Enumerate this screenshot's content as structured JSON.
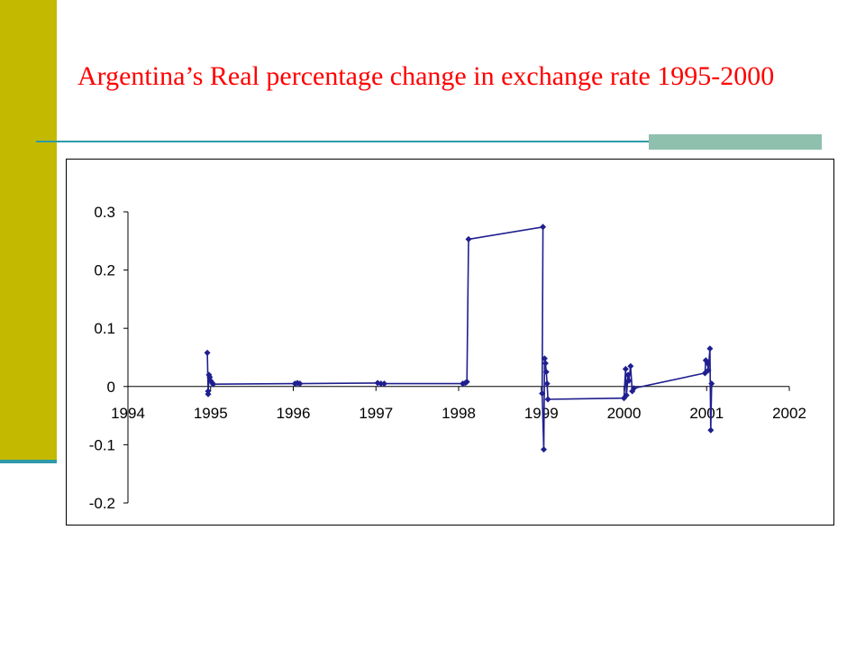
{
  "slide": {
    "title": "Argentina’s Real percentage change in exchange rate 1995-2000"
  },
  "colors": {
    "accent_bar": "#c3b900",
    "rule": "#2e9aa8",
    "rule_block": "#8fbfad",
    "title": "#ff0000",
    "series": "#1f1f8f"
  },
  "chart_data": {
    "type": "scatter",
    "title": "",
    "xlabel": "",
    "ylabel": "",
    "xlim": [
      1994,
      2002
    ],
    "ylim": [
      -0.2,
      0.3
    ],
    "x_ticks": [
      "1994",
      "1995",
      "1996",
      "1997",
      "1998",
      "1999",
      "2000",
      "2001",
      "2002"
    ],
    "y_ticks": [
      "0.3",
      "0.2",
      "0.1",
      "0",
      "-0.1",
      "-0.2"
    ],
    "grid": false,
    "legend": "none",
    "series": [
      {
        "points": [
          [
            1994.96,
            0.058
          ],
          [
            1994.97,
            -0.008
          ],
          [
            1994.97,
            -0.013
          ],
          [
            1994.98,
            0.02
          ],
          [
            1994.99,
            0.016
          ],
          [
            1995.0,
            0.01
          ],
          [
            1995.02,
            0.006
          ],
          [
            1995.03,
            0.004
          ],
          [
            1996.02,
            0.005
          ],
          [
            1996.05,
            0.006
          ],
          [
            1996.08,
            0.005
          ],
          [
            1997.02,
            0.006
          ],
          [
            1997.06,
            0.005
          ],
          [
            1997.1,
            0.005
          ],
          [
            1998.05,
            0.005
          ],
          [
            1998.08,
            0.006
          ],
          [
            1998.1,
            0.008
          ],
          [
            1998.12,
            0.253
          ],
          [
            1999.02,
            0.274
          ],
          [
            1999.01,
            -0.012
          ],
          [
            1999.03,
            -0.108
          ],
          [
            1999.04,
            0.048
          ],
          [
            1999.05,
            0.04
          ],
          [
            1999.06,
            0.025
          ],
          [
            1999.07,
            0.005
          ],
          [
            1999.08,
            -0.022
          ],
          [
            2000.0,
            -0.02
          ],
          [
            2000.02,
            0.03
          ],
          [
            2000.03,
            -0.015
          ],
          [
            2000.05,
            0.02
          ],
          [
            2000.06,
            0.01
          ],
          [
            2000.08,
            0.035
          ],
          [
            2000.1,
            -0.008
          ],
          [
            2000.12,
            -0.003
          ],
          [
            2000.98,
            0.023
          ],
          [
            2000.99,
            0.045
          ],
          [
            2001.01,
            0.04
          ],
          [
            2001.02,
            0.028
          ],
          [
            2001.04,
            0.065
          ],
          [
            2001.05,
            -0.075
          ],
          [
            2001.06,
            0.005
          ]
        ]
      }
    ]
  }
}
